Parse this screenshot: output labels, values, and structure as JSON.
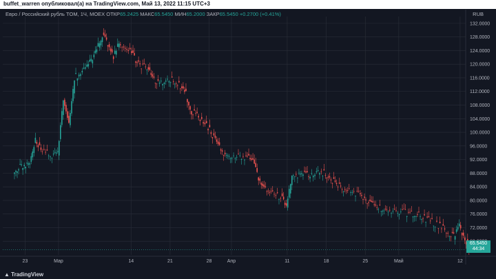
{
  "header": {
    "publish_text": "buffet_warren опубликовал(а) на TradingView.com, Май 13, 2022 11:15 UTC+3"
  },
  "legend": {
    "symbol": "Евро / Российский рубль TOM, 1Ч, MOEX",
    "open_label": "ОТКР",
    "open_value": "65.2425",
    "high_label": "МАКС",
    "high_value": "65.5450",
    "low_label": "МИН",
    "low_value": "65.2000",
    "close_label": "ЗАКР",
    "close_value": "65.5450",
    "change": "+0.2700 (+0.41%)"
  },
  "currency": "RUB",
  "price_box": {
    "price": "65.5450",
    "countdown": "44:34"
  },
  "footer": {
    "logo_text": "TradingView"
  },
  "colors": {
    "background": "#131722",
    "up": "#26a69a",
    "down": "#ef5350",
    "grid": "#2a2e39",
    "text": "#b2b5be"
  },
  "chart_data": {
    "type": "candlestick",
    "title": "Евро / Российский рубль TOM, 1Ч, MOEX",
    "ylabel": "RUB",
    "ylim": [
      64,
      134
    ],
    "y_ticks": [
      "132.0000",
      "128.0000",
      "124.0000",
      "120.0000",
      "116.0000",
      "112.0000",
      "108.0000",
      "104.0000",
      "100.0000",
      "96.0000",
      "92.0000",
      "88.0000",
      "84.0000",
      "80.0000",
      "76.0000",
      "72.0000",
      "68.0000"
    ],
    "y_tick_values": [
      132,
      128,
      124,
      120,
      116,
      112,
      108,
      104,
      100,
      96,
      92,
      88,
      84,
      80,
      76,
      72,
      68
    ],
    "x_ticks": [
      "23",
      "Мар",
      "14",
      "21",
      "28",
      "Апр",
      "11",
      "18",
      "25",
      "Май",
      "12"
    ],
    "x_tick_dates": [
      "2022-02-23",
      "2022-03-01",
      "2022-03-14",
      "2022-03-21",
      "2022-03-28",
      "2022-04-01",
      "2022-04-11",
      "2022-04-18",
      "2022-04-25",
      "2022-05-01",
      "2022-05-12"
    ],
    "series": [
      {
        "x": [
          "2022-02-21",
          "2022-02-22",
          "2022-02-23",
          "2022-02-24",
          "2022-02-25",
          "2022-02-26",
          "2022-02-28",
          "2022-03-01",
          "2022-03-02",
          "2022-03-03",
          "2022-03-04",
          "2022-03-06",
          "2022-03-07",
          "2022-03-08",
          "2022-03-09",
          "2022-03-10",
          "2022-03-11",
          "2022-03-12",
          "2022-03-14",
          "2022-03-15",
          "2022-03-16",
          "2022-03-17",
          "2022-03-18",
          "2022-03-19",
          "2022-03-21",
          "2022-03-22",
          "2022-03-23",
          "2022-03-24",
          "2022-03-25",
          "2022-03-26",
          "2022-03-28",
          "2022-03-29",
          "2022-03-30",
          "2022-03-31",
          "2022-04-01",
          "2022-04-03",
          "2022-04-04",
          "2022-04-05",
          "2022-04-06",
          "2022-04-07",
          "2022-04-08",
          "2022-04-10",
          "2022-04-11",
          "2022-04-12",
          "2022-04-13",
          "2022-04-14",
          "2022-04-15",
          "2022-04-17",
          "2022-04-18",
          "2022-04-19",
          "2022-04-20",
          "2022-04-21",
          "2022-04-22",
          "2022-04-24",
          "2022-04-25",
          "2022-04-26",
          "2022-04-27",
          "2022-04-28",
          "2022-04-29",
          "2022-05-01",
          "2022-05-04",
          "2022-05-05",
          "2022-05-06",
          "2022-05-08",
          "2022-05-10",
          "2022-05-11",
          "2022-05-12",
          "2022-05-13"
        ],
        "close": [
          89.5,
          90.5,
          91.2,
          97.5,
          94.5,
          93.2,
          94.0,
          110.0,
          102.0,
          116.0,
          118.5,
          121.0,
          124.0,
          128.5,
          126.0,
          122.0,
          126.0,
          123.5,
          121.0,
          119.5,
          119.0,
          116.0,
          114.5,
          115.5,
          114.8,
          113.5,
          111.0,
          106.0,
          105.0,
          101.0,
          98.5,
          95.5,
          93.5,
          93.0,
          92.8,
          92.5,
          91.0,
          86.5,
          83.5,
          82.5,
          81.0,
          78.0,
          88.0,
          87.5,
          88.0,
          87.0,
          88.5,
          87.5,
          86.0,
          84.5,
          83.5,
          82.8,
          82.0,
          80.5,
          79.0,
          78.0,
          77.5,
          77.0,
          76.5,
          76.0,
          75.5,
          74.5,
          73.0,
          70.5,
          69.5,
          72.5,
          68.5,
          65.5
        ]
      }
    ]
  }
}
